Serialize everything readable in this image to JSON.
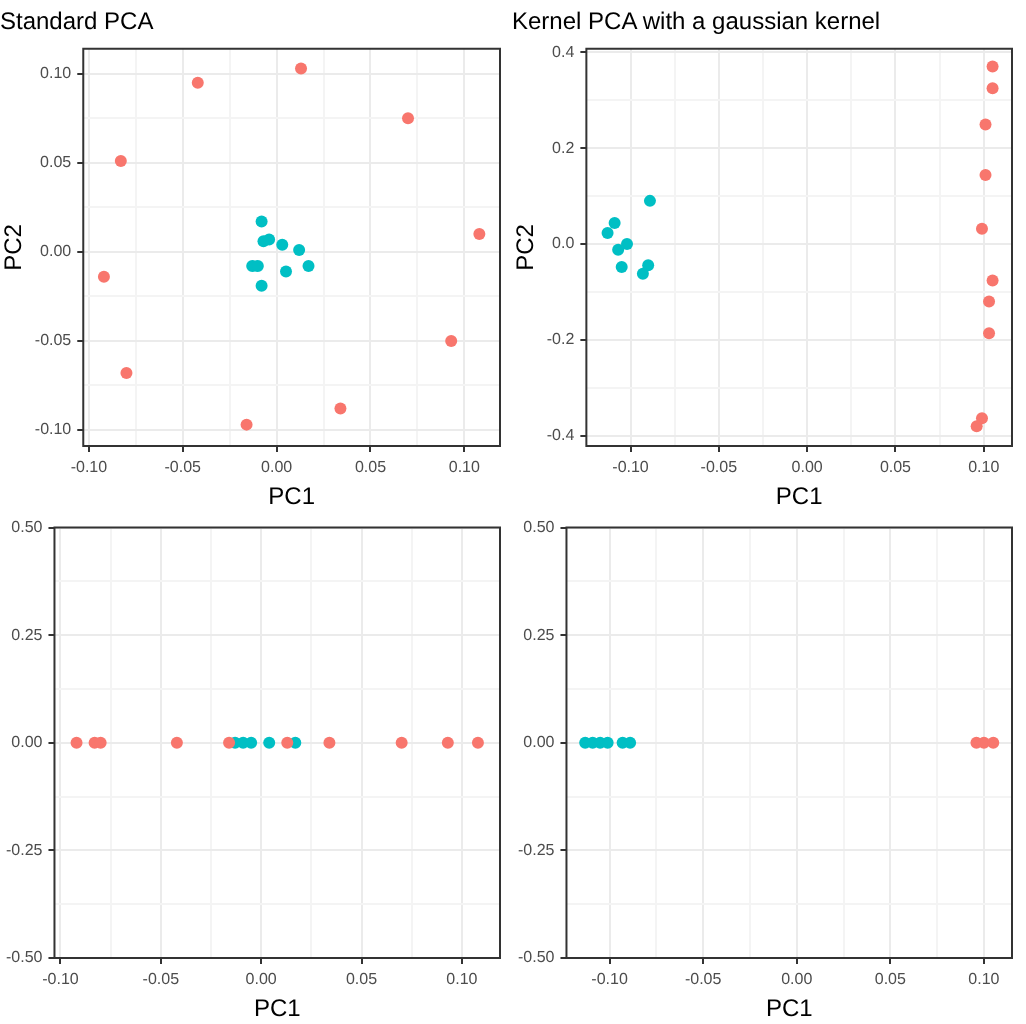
{
  "chart_data": [
    {
      "type": "scatter",
      "title": "Standard PCA",
      "xlabel": "PC1",
      "ylabel": "PC2",
      "grid": true,
      "marker": "circle",
      "xlim": [
        -0.103,
        0.119
      ],
      "ylim": [
        -0.109,
        0.114
      ],
      "xticks": [
        {
          "value": -0.1,
          "label": "-0.10"
        },
        {
          "value": -0.075,
          "label": null
        },
        {
          "value": -0.05,
          "label": "-0.05"
        },
        {
          "value": -0.025,
          "label": null
        },
        {
          "value": 0,
          "label": "0.00"
        },
        {
          "value": 0.025,
          "label": null
        },
        {
          "value": 0.05,
          "label": "0.05"
        },
        {
          "value": 0.075,
          "label": null
        },
        {
          "value": 0.1,
          "label": "0.10"
        }
      ],
      "yticks": [
        {
          "value": -0.1,
          "label": "-0.10"
        },
        {
          "value": -0.075,
          "label": null
        },
        {
          "value": -0.05,
          "label": "-0.05"
        },
        {
          "value": -0.025,
          "label": null
        },
        {
          "value": 0,
          "label": "0.00"
        },
        {
          "value": 0.025,
          "label": null
        },
        {
          "value": 0.05,
          "label": "0.05"
        },
        {
          "value": 0.075,
          "label": null
        },
        {
          "value": 0.1,
          "label": "0.10"
        }
      ],
      "series": [
        {
          "color": "#f8766d",
          "x": [
            -0.042,
            0.013,
            0.07,
            -0.083,
            0.108,
            -0.092,
            0.093,
            -0.08,
            0.034,
            -0.016
          ],
          "values": [
            0.095,
            0.103,
            0.075,
            0.051,
            0.01,
            -0.014,
            -0.05,
            -0.068,
            -0.088,
            -0.097
          ]
        },
        {
          "color": "#00bfc4",
          "x": [
            -0.008,
            -0.007,
            -0.004,
            0.003,
            0.012,
            -0.013,
            -0.01,
            -0.008,
            0.005,
            0.017
          ],
          "values": [
            0.017,
            0.006,
            0.007,
            0.004,
            0.001,
            -0.008,
            -0.008,
            -0.019,
            -0.011,
            -0.008
          ]
        }
      ]
    },
    {
      "type": "scatter",
      "title": "Kernel PCA with a gaussian kernel",
      "xlabel": "PC1",
      "ylabel": "PC2",
      "grid": true,
      "marker": "circle",
      "xlim": [
        -0.125,
        0.116
      ],
      "ylim": [
        -0.421,
        0.407
      ],
      "xticks": [
        {
          "value": -0.1,
          "label": "-0.10"
        },
        {
          "value": -0.075,
          "label": null
        },
        {
          "value": -0.05,
          "label": "-0.05"
        },
        {
          "value": -0.025,
          "label": null
        },
        {
          "value": 0,
          "label": "0.00"
        },
        {
          "value": 0.025,
          "label": null
        },
        {
          "value": 0.05,
          "label": "0.05"
        },
        {
          "value": 0.075,
          "label": null
        },
        {
          "value": 0.1,
          "label": "0.10"
        }
      ],
      "yticks": [
        {
          "value": -0.4,
          "label": "-0.4"
        },
        {
          "value": -0.3,
          "label": null
        },
        {
          "value": -0.2,
          "label": "-0.2"
        },
        {
          "value": -0.1,
          "label": null
        },
        {
          "value": 0,
          "label": "0.0"
        },
        {
          "value": 0.1,
          "label": null
        },
        {
          "value": 0.2,
          "label": "0.2"
        },
        {
          "value": 0.3,
          "label": null
        },
        {
          "value": 0.4,
          "label": "0.4"
        }
      ],
      "series": [
        {
          "color": "#f8766d",
          "x": [
            0.105,
            0.105,
            0.101,
            0.101,
            0.099,
            0.105,
            0.103,
            0.103,
            0.099,
            0.096
          ],
          "values": [
            0.37,
            0.325,
            0.249,
            0.144,
            0.032,
            -0.076,
            -0.12,
            -0.186,
            -0.363,
            -0.38
          ]
        },
        {
          "color": "#00bfc4",
          "x": [
            -0.089,
            -0.109,
            -0.113,
            -0.107,
            -0.104,
            -0.102,
            -0.105,
            -0.09,
            -0.093
          ],
          "values": [
            0.09,
            0.044,
            0.023,
            -0.012,
            null,
            0,
            -0.048,
            -0.044,
            -0.062
          ]
        }
      ]
    },
    {
      "type": "scatter",
      "xlabel": "PC1",
      "grid": true,
      "marker": "circle",
      "xlim": [
        -0.103,
        0.119
      ],
      "ylim": [
        -0.5,
        0.5
      ],
      "xticks": [
        {
          "value": -0.1,
          "label": "-0.10"
        },
        {
          "value": -0.075,
          "label": null
        },
        {
          "value": -0.05,
          "label": "-0.05"
        },
        {
          "value": -0.025,
          "label": null
        },
        {
          "value": 0,
          "label": "0.00"
        },
        {
          "value": 0.025,
          "label": null
        },
        {
          "value": 0.05,
          "label": "0.05"
        },
        {
          "value": 0.075,
          "label": null
        },
        {
          "value": 0.1,
          "label": "0.10"
        }
      ],
      "yticks": [
        {
          "value": -0.5,
          "label": "-0.50"
        },
        {
          "value": -0.375,
          "label": null
        },
        {
          "value": -0.25,
          "label": "-0.25"
        },
        {
          "value": -0.125,
          "label": null
        },
        {
          "value": 0,
          "label": "0.00"
        },
        {
          "value": 0.125,
          "label": null
        },
        {
          "value": 0.25,
          "label": "0.25"
        },
        {
          "value": 0.375,
          "label": null
        },
        {
          "value": 0.5,
          "label": "0.50"
        }
      ],
      "series": [
        {
          "color": "#f8766d",
          "x": [
            -0.042,
            0.013,
            0.07,
            -0.083,
            0.108,
            -0.092,
            0.093,
            -0.08,
            0.034,
            -0.016
          ],
          "values": [
            0,
            0,
            0,
            0,
            0,
            0,
            0,
            0,
            0,
            0
          ]
        },
        {
          "color": "#00bfc4",
          "x": [
            -0.013,
            -0.009,
            -0.005,
            0.004,
            0.017
          ],
          "values": [
            0,
            0,
            0,
            0,
            0
          ]
        }
      ]
    },
    {
      "type": "scatter",
      "xlabel": "PC1",
      "grid": true,
      "marker": "circle",
      "xlim": [
        -0.123,
        0.115
      ],
      "ylim": [
        -0.5,
        0.5
      ],
      "xticks": [
        {
          "value": -0.1,
          "label": "-0.10"
        },
        {
          "value": -0.075,
          "label": null
        },
        {
          "value": -0.05,
          "label": "-0.05"
        },
        {
          "value": -0.025,
          "label": null
        },
        {
          "value": 0,
          "label": "0.00"
        },
        {
          "value": 0.025,
          "label": null
        },
        {
          "value": 0.05,
          "label": "0.05"
        },
        {
          "value": 0.075,
          "label": null
        },
        {
          "value": 0.1,
          "label": "0.10"
        }
      ],
      "yticks": [
        {
          "value": -0.5,
          "label": "-0.50"
        },
        {
          "value": -0.375,
          "label": null
        },
        {
          "value": -0.25,
          "label": "-0.25"
        },
        {
          "value": -0.125,
          "label": null
        },
        {
          "value": 0,
          "label": "0.00"
        },
        {
          "value": 0.125,
          "label": null
        },
        {
          "value": 0.25,
          "label": "0.25"
        },
        {
          "value": 0.375,
          "label": null
        },
        {
          "value": 0.5,
          "label": "0.50"
        }
      ],
      "series": [
        {
          "color": "#f8766d",
          "x": [
            0.096,
            0.1,
            0.105
          ],
          "values": [
            0,
            0,
            0
          ]
        },
        {
          "color": "#00bfc4",
          "x": [
            -0.113,
            -0.109,
            -0.105,
            -0.101,
            -0.093,
            -0.089
          ],
          "values": [
            0,
            0,
            0,
            0,
            0,
            0
          ]
        }
      ]
    }
  ]
}
